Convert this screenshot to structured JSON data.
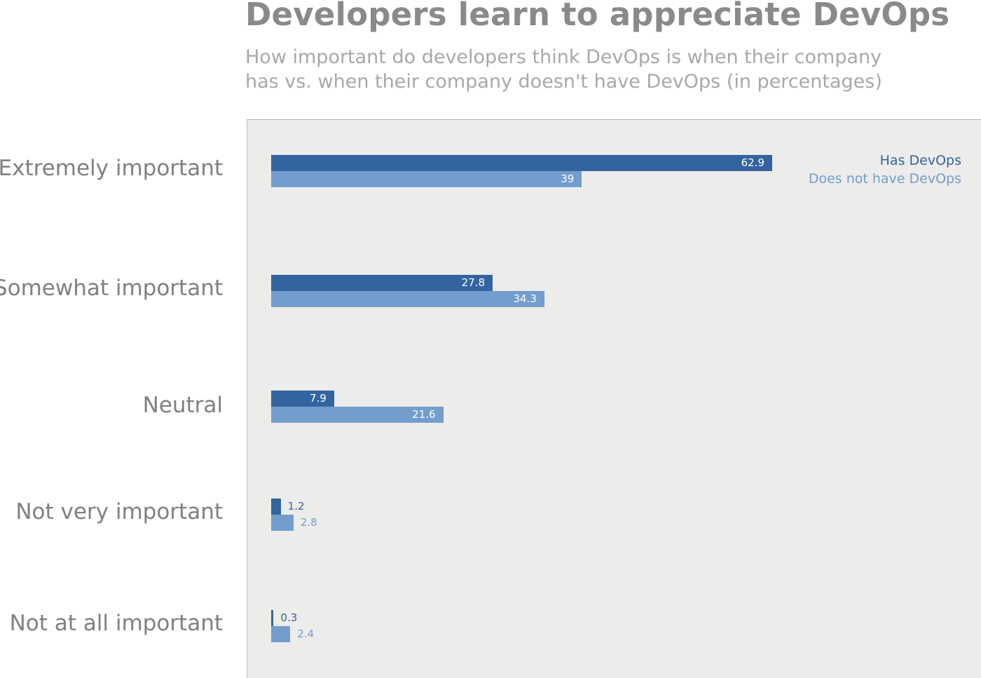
{
  "chart_data": {
    "type": "bar",
    "orientation": "horizontal",
    "title": "Developers learn to appreciate DevOps",
    "subtitle": "How important do developers think DevOps is when their company has vs. when their company doesn't have DevOps (in percentages)",
    "categories": [
      "Extremely important",
      "Somewhat important",
      "Neutral",
      "Not very important",
      "Not at all important"
    ],
    "series": [
      {
        "name": "Has DevOps",
        "values": [
          62.9,
          27.8,
          7.9,
          1.2,
          0.3
        ],
        "color": "#3464a0"
      },
      {
        "name": "Does not have DevOps",
        "values": [
          39,
          34.3,
          21.6,
          2.8,
          2.4
        ],
        "color": "#729dcd"
      }
    ],
    "value_labels": [
      [
        "62.9",
        "27.8",
        "7.9",
        "1.2",
        "0.3"
      ],
      [
        "39",
        "34.3",
        "21.6",
        "2.8",
        "2.4"
      ]
    ],
    "xlim": [
      0,
      100
    ],
    "legend_position": "top-right",
    "grid": false,
    "background": "#ececea"
  }
}
